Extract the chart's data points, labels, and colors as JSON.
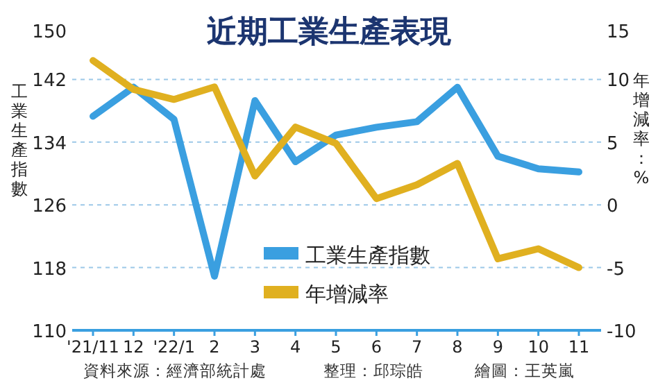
{
  "chart_data": {
    "type": "line",
    "title": "近期工業生產表現",
    "ylabel": "工業生產指數",
    "y2label": "年增減率：%",
    "categories": [
      "'21/11",
      "12",
      "'22/1",
      "2",
      "3",
      "4",
      "5",
      "6",
      "7",
      "8",
      "9",
      "10",
      "11"
    ],
    "series": [
      {
        "name": "工業生產指數",
        "color": "#3a9fe0",
        "values": [
          137.3,
          141,
          136.9,
          116.9,
          139.3,
          131.5,
          134.9,
          135.9,
          136.6,
          141,
          132.2,
          130.6,
          130.2
        ]
      },
      {
        "name": "年增減率",
        "color": "#e0b020",
        "axis": "y2",
        "values": [
          11.5,
          9.2,
          8.4,
          9.4,
          2.3,
          6.2,
          4.9,
          0.5,
          1.6,
          3.3,
          -4.3,
          -3.5,
          -5.0
        ]
      }
    ],
    "ylim": [
      110,
      150
    ],
    "yticks": [
      110,
      118,
      126,
      134,
      142,
      150
    ],
    "y2lim": [
      -10,
      15
    ],
    "y2ticks": [
      -10,
      -5,
      0,
      5,
      10,
      15
    ],
    "grid": "y",
    "legend": "bottom",
    "line_style": "solid",
    "marker": "none",
    "annotations": [
      "資料來源：經濟部統計處",
      "整理：邱琮皓",
      "繪圖：王英嵐"
    ]
  }
}
